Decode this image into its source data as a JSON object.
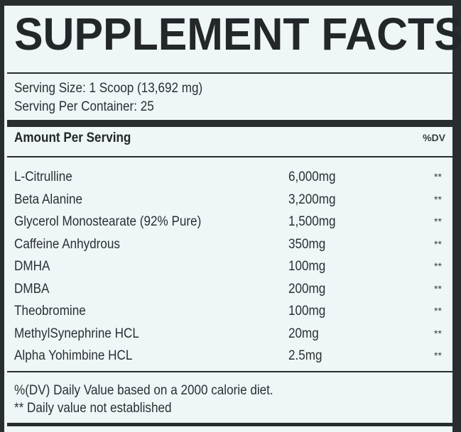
{
  "title": "SUPPLEMENT FACTS",
  "serving_size": "Serving Size: 1 Scoop (13,692 mg)",
  "servings_per_container": "Serving Per Container: 25",
  "header": {
    "amount_label": "Amount Per Serving",
    "dv_label": "%DV"
  },
  "ingredients": [
    {
      "name": "L-Citrulline",
      "amount": "6,000mg",
      "dv": "**"
    },
    {
      "name": "Beta Alanine",
      "amount": "3,200mg",
      "dv": "**"
    },
    {
      "name": "Glycerol Monostearate (92% Pure)",
      "amount": "1,500mg",
      "dv": "**"
    },
    {
      "name": "Caffeine Anhydrous",
      "amount": "350mg",
      "dv": "**"
    },
    {
      "name": "DMHA",
      "amount": "100mg",
      "dv": "**"
    },
    {
      "name": "DMBA",
      "amount": "200mg",
      "dv": "**"
    },
    {
      "name": "Theobromine",
      "amount": "100mg",
      "dv": "**"
    },
    {
      "name": "MethylSynephrine HCL",
      "amount": "20mg",
      "dv": "**"
    },
    {
      "name": "Alpha Yohimbine HCL",
      "amount": "2.5mg",
      "dv": "**"
    }
  ],
  "footnotes": {
    "dv_note": "%(DV) Daily Value based on a 2000 calorie diet.",
    "star_note": "** Daily value not established"
  },
  "colors": {
    "background": "#eef6f7",
    "ink": "#26292c"
  }
}
